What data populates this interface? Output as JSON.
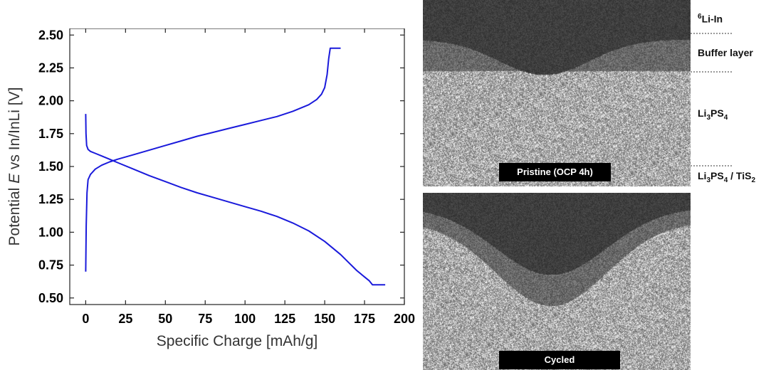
{
  "chart_data": {
    "type": "line",
    "xlabel": "Specific Charge [mAh/g]",
    "ylabel_parts": [
      "Potential ",
      "E",
      " vs In/InLi [V]"
    ],
    "xlim": [
      -10,
      200
    ],
    "ylim": [
      0.45,
      2.55
    ],
    "x_ticks": [
      0,
      25,
      50,
      75,
      100,
      125,
      150,
      175,
      200
    ],
    "y_ticks": [
      0.5,
      0.75,
      1.0,
      1.25,
      1.5,
      1.75,
      2.0,
      2.25,
      2.5
    ],
    "y_tick_labels": [
      "0.50",
      "0.75",
      "1.00",
      "1.25",
      "1.50",
      "1.75",
      "2.00",
      "2.25",
      "2.50"
    ],
    "series": [
      {
        "color": "#1a1adb",
        "x": [
          0,
          0.3,
          0.8,
          1.5,
          3,
          6,
          10,
          15,
          20,
          30,
          40,
          50,
          60,
          70,
          80,
          90,
          100,
          110,
          120,
          130,
          140,
          145,
          148,
          150,
          151.5,
          152.5,
          153.5,
          160
        ],
        "y": [
          0.7,
          1.05,
          1.3,
          1.4,
          1.44,
          1.48,
          1.51,
          1.535,
          1.555,
          1.59,
          1.625,
          1.66,
          1.695,
          1.73,
          1.76,
          1.79,
          1.82,
          1.85,
          1.88,
          1.92,
          1.97,
          2.01,
          2.05,
          2.1,
          2.2,
          2.32,
          2.4,
          2.4
        ]
      },
      {
        "color": "#1a1adb",
        "x": [
          0,
          0.2,
          0.6,
          1.5,
          3,
          6,
          10,
          15,
          20,
          30,
          40,
          50,
          60,
          70,
          80,
          90,
          100,
          110,
          120,
          130,
          140,
          150,
          160,
          165,
          170,
          175,
          178,
          180,
          188
        ],
        "y": [
          1.9,
          1.75,
          1.66,
          1.63,
          1.615,
          1.6,
          1.58,
          1.555,
          1.53,
          1.48,
          1.43,
          1.385,
          1.34,
          1.3,
          1.265,
          1.23,
          1.195,
          1.16,
          1.12,
          1.07,
          1.01,
          0.93,
          0.83,
          0.77,
          0.71,
          0.66,
          0.63,
          0.6,
          0.6
        ]
      }
    ]
  },
  "micrographs": {
    "top_caption": "Pristine (OCP 4h)",
    "bottom_caption": "Cycled",
    "layer_labels": [
      {
        "pre": "",
        "sup": "6",
        "main": "Li-In"
      },
      {
        "main": "Buffer layer"
      },
      {
        "main": "Li",
        "sub1": "3",
        "mid": "PS",
        "sub2": "4"
      },
      {
        "main": "Li",
        "sub1": "3",
        "mid": "PS",
        "sub2": "4",
        "tail": " / TiS",
        "sub3": "2"
      }
    ]
  }
}
